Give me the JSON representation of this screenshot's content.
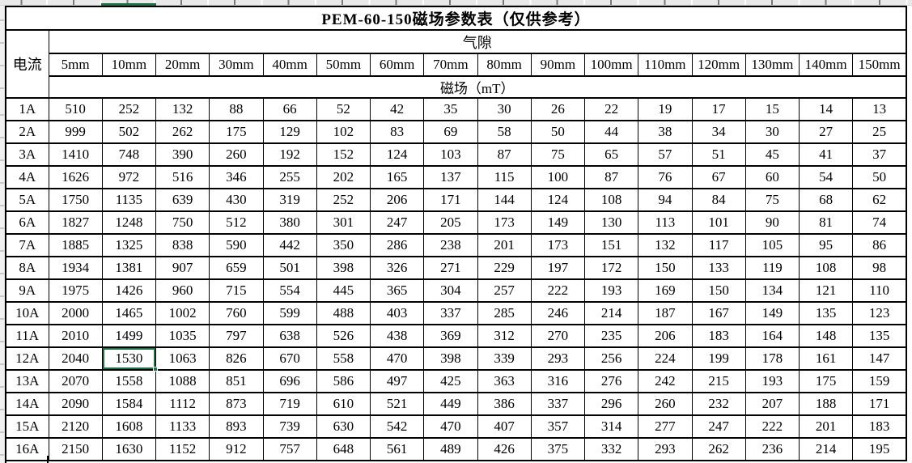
{
  "app": {
    "kind": "spreadsheet",
    "accent_color": "#1E7145",
    "selection": {
      "row_label": "12A",
      "column": "10mm",
      "value": "1530"
    }
  },
  "table": {
    "title": "PEM-60-150磁场参数表（仅供参考）",
    "row_axis_header": "电流",
    "col_group_header": "气隙",
    "unit_header": "磁场（mT）",
    "columns": [
      "5mm",
      "10mm",
      "20mm",
      "30mm",
      "40mm",
      "50mm",
      "60mm",
      "70mm",
      "80mm",
      "90mm",
      "100mm",
      "110mm",
      "120mm",
      "130mm",
      "140mm",
      "150mm"
    ],
    "rows": [
      {
        "label": "1A",
        "values": [
          510,
          252,
          132,
          88,
          66,
          52,
          42,
          35,
          30,
          26,
          22,
          19,
          17,
          15,
          14,
          13
        ]
      },
      {
        "label": "2A",
        "values": [
          999,
          502,
          262,
          175,
          129,
          102,
          83,
          69,
          58,
          50,
          44,
          38,
          34,
          30,
          27,
          25
        ]
      },
      {
        "label": "3A",
        "values": [
          1410,
          748,
          390,
          260,
          192,
          152,
          124,
          103,
          87,
          75,
          65,
          57,
          51,
          45,
          41,
          37
        ]
      },
      {
        "label": "4A",
        "values": [
          1626,
          972,
          516,
          346,
          255,
          202,
          165,
          137,
          115,
          100,
          87,
          76,
          67,
          60,
          54,
          50
        ]
      },
      {
        "label": "5A",
        "values": [
          1750,
          1135,
          639,
          430,
          319,
          252,
          206,
          171,
          144,
          124,
          108,
          94,
          84,
          75,
          68,
          62
        ]
      },
      {
        "label": "6A",
        "values": [
          1827,
          1248,
          750,
          512,
          380,
          301,
          247,
          205,
          173,
          149,
          130,
          113,
          101,
          90,
          81,
          74
        ]
      },
      {
        "label": "7A",
        "values": [
          1885,
          1325,
          838,
          590,
          442,
          350,
          286,
          238,
          201,
          173,
          151,
          132,
          117,
          105,
          95,
          86
        ]
      },
      {
        "label": "8A",
        "values": [
          1934,
          1381,
          907,
          659,
          501,
          398,
          326,
          271,
          229,
          197,
          172,
          150,
          133,
          119,
          108,
          98
        ]
      },
      {
        "label": "9A",
        "values": [
          1975,
          1426,
          960,
          715,
          554,
          445,
          365,
          304,
          257,
          222,
          193,
          169,
          150,
          134,
          121,
          110
        ]
      },
      {
        "label": "10A",
        "values": [
          2000,
          1465,
          1002,
          760,
          599,
          488,
          403,
          337,
          285,
          246,
          214,
          187,
          167,
          149,
          135,
          123
        ]
      },
      {
        "label": "11A",
        "values": [
          2010,
          1499,
          1035,
          797,
          638,
          526,
          438,
          369,
          312,
          270,
          235,
          206,
          183,
          164,
          148,
          135
        ]
      },
      {
        "label": "12A",
        "values": [
          2040,
          1530,
          1063,
          826,
          670,
          558,
          470,
          398,
          339,
          293,
          256,
          224,
          199,
          178,
          161,
          147
        ]
      },
      {
        "label": "13A",
        "values": [
          2070,
          1558,
          1088,
          851,
          696,
          586,
          497,
          425,
          363,
          316,
          276,
          242,
          215,
          193,
          175,
          159
        ]
      },
      {
        "label": "14A",
        "values": [
          2090,
          1584,
          1112,
          873,
          719,
          610,
          521,
          449,
          386,
          337,
          296,
          260,
          232,
          207,
          188,
          171
        ]
      },
      {
        "label": "15A",
        "values": [
          2120,
          1608,
          1133,
          893,
          739,
          630,
          542,
          470,
          407,
          357,
          314,
          277,
          247,
          222,
          201,
          183
        ]
      },
      {
        "label": "16A",
        "values": [
          2150,
          1630,
          1152,
          912,
          757,
          648,
          561,
          489,
          426,
          375,
          332,
          293,
          262,
          236,
          214,
          195
        ]
      }
    ]
  }
}
